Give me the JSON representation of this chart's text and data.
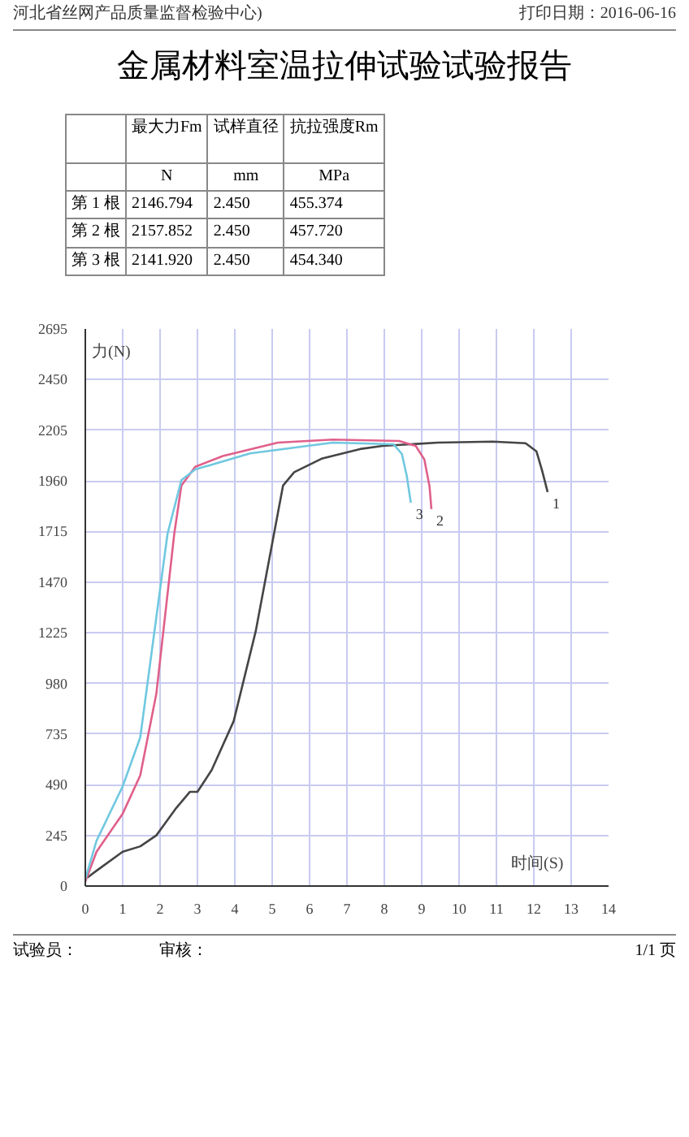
{
  "chart_data": {
    "type": "line",
    "title": "金属材料室温拉伸试验试验报告",
    "xlabel": "时间(S)",
    "ylabel": "力(N)",
    "xlim": [
      0,
      14
    ],
    "ylim": [
      0,
      2695
    ],
    "xticks": [
      0,
      1,
      2,
      3,
      4,
      5,
      6,
      7,
      8,
      9,
      10,
      11,
      12,
      13,
      14
    ],
    "yticks": [
      0,
      245,
      490,
      735,
      980,
      1225,
      1470,
      1715,
      1960,
      2205,
      2450,
      2695
    ],
    "grid": true,
    "line_style": "solid",
    "marker": "none",
    "annotations": [
      "河北省丝网产品质量监督检验中心)",
      "打印日期：2016-06-16",
      "最大力Fm",
      "试样直径",
      "抗拉强度Rm",
      "N",
      "mm",
      "MPa",
      "第 1 根",
      "2146.794",
      "2.450",
      "455.374",
      "第 2 根",
      "2157.852",
      "2.450",
      "457.720",
      "第 3 根",
      "2141.920",
      "2.450",
      "454.340",
      "试验员：",
      "审核：",
      "1/1 页"
    ],
    "series": [
      {
        "name": "1",
        "color": "#454545",
        "x": [
          0.05,
          0.3,
          1,
          1.47,
          1.9,
          2.43,
          2.8,
          3.0,
          3.38,
          3.97,
          4.56,
          5.29,
          5.59,
          6.32,
          7.35,
          7.96,
          9.43,
          10.9,
          11.78,
          12.07,
          12.22,
          12.37
        ],
        "values": [
          40,
          74,
          166,
          192,
          245,
          377,
          456,
          456,
          561,
          798,
          1233,
          1937,
          2002,
          2067,
          2114,
          2129,
          2145,
          2150,
          2142,
          2103,
          2011,
          1906
        ]
      },
      {
        "name": "2",
        "color": "#e0608a",
        "x": [
          0,
          0.3,
          1,
          1.47,
          1.9,
          2.13,
          2.38,
          2.57,
          2.94,
          3.68,
          5.15,
          6.62,
          8.4,
          8.84,
          9.07,
          9.21,
          9.26
        ],
        "values": [
          21,
          166,
          350,
          535,
          930,
          1300,
          1704,
          1937,
          2028,
          2080,
          2145,
          2160,
          2153,
          2129,
          2064,
          1933,
          1823
        ]
      },
      {
        "name": "3",
        "color": "#70c8e0",
        "x": [
          0,
          0.3,
          1,
          1.47,
          1.9,
          2.2,
          2.57,
          2.94,
          4.41,
          6.62,
          8.25,
          8.47,
          8.6,
          8.71
        ],
        "values": [
          34,
          219,
          482,
          719,
          1300,
          1704,
          1963,
          2015,
          2093,
          2145,
          2137,
          2090,
          1985,
          1854
        ]
      }
    ]
  }
}
